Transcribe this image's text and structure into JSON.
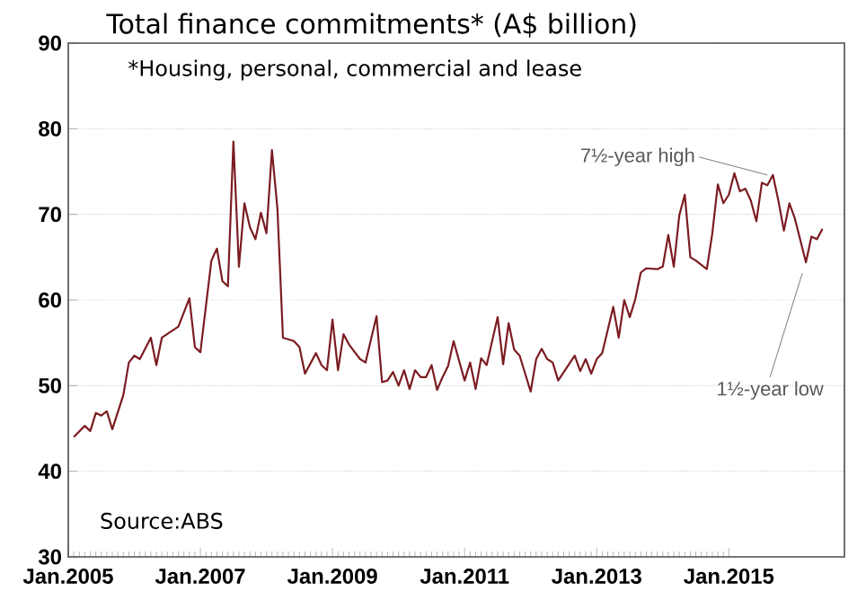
{
  "chart_data": {
    "type": "line",
    "title": "Total finance commitments* (A$ billion)",
    "subtitle": "*Housing, personal, commercial and lease",
    "x": [
      "2005-02",
      "2005-04",
      "2005-05",
      "2005-06",
      "2005-07",
      "2005-08",
      "2005-09",
      "2005-11",
      "2005-12",
      "2006-01",
      "2006-02",
      "2006-04",
      "2006-05",
      "2006-06",
      "2006-09",
      "2006-11",
      "2006-12",
      "2007-01",
      "2007-03",
      "2007-04",
      "2007-05",
      "2007-06",
      "2007-07",
      "2007-08",
      "2007-09",
      "2007-10",
      "2007-11",
      "2007-12",
      "2008-01",
      "2008-02",
      "2008-03",
      "2008-04",
      "2008-06",
      "2008-07",
      "2008-08",
      "2008-10",
      "2008-11",
      "2008-12",
      "2009-01",
      "2009-02",
      "2009-03",
      "2009-04",
      "2009-06",
      "2009-07",
      "2009-09",
      "2009-10",
      "2009-11",
      "2009-12",
      "2010-01",
      "2010-02",
      "2010-03",
      "2010-04",
      "2010-05",
      "2010-06",
      "2010-07",
      "2010-08",
      "2010-09",
      "2010-10",
      "2010-11",
      "2011-01",
      "2011-02",
      "2011-03",
      "2011-04",
      "2011-05",
      "2011-07",
      "2011-08",
      "2011-09",
      "2011-10",
      "2011-11",
      "2012-01",
      "2012-02",
      "2012-03",
      "2012-04",
      "2012-05",
      "2012-06",
      "2012-09",
      "2012-10",
      "2012-11",
      "2012-12",
      "2013-01",
      "2013-02",
      "2013-04",
      "2013-05",
      "2013-06",
      "2013-07",
      "2013-08",
      "2013-09",
      "2013-10",
      "2013-12",
      "2014-01",
      "2014-02",
      "2014-03",
      "2014-04",
      "2014-05",
      "2014-06",
      "2014-07",
      "2014-09",
      "2014-10",
      "2014-11",
      "2014-12",
      "2015-01",
      "2015-02",
      "2015-03",
      "2015-04",
      "2015-05",
      "2015-06",
      "2015-07",
      "2015-08",
      "2015-09",
      "2015-10",
      "2015-11",
      "2015-12",
      "2016-01",
      "2016-03",
      "2016-04",
      "2016-05",
      "2016-06"
    ],
    "series": [
      {
        "color": "#7b1c22",
        "values": [
          44.0,
          45.3,
          44.7,
          46.8,
          46.5,
          47.0,
          44.9,
          48.9,
          52.7,
          53.5,
          53.1,
          55.6,
          52.4,
          55.6,
          56.9,
          60.2,
          54.5,
          53.9,
          64.6,
          66.0,
          62.2,
          61.6,
          78.5,
          63.9,
          71.3,
          68.5,
          67.1,
          70.2,
          67.8,
          77.5,
          70.6,
          55.6,
          55.2,
          54.5,
          51.4,
          53.8,
          52.4,
          51.8,
          57.7,
          51.8,
          56.0,
          54.8,
          53.1,
          52.7,
          58.1,
          50.4,
          50.6,
          51.6,
          50.0,
          51.8,
          49.6,
          51.8,
          51.0,
          51.0,
          52.4,
          49.5,
          51.0,
          52.3,
          55.2,
          50.6,
          52.7,
          49.6,
          53.2,
          52.4,
          58.0,
          52.5,
          57.3,
          54.2,
          53.5,
          49.3,
          53.1,
          54.3,
          53.1,
          52.7,
          50.6,
          53.5,
          51.7,
          53.1,
          51.4,
          53.1,
          53.8,
          59.2,
          55.6,
          60.0,
          58.0,
          60.1,
          63.2,
          63.7,
          63.6,
          63.9,
          67.6,
          63.9,
          69.9,
          72.3,
          65.0,
          64.6,
          63.6,
          67.8,
          73.5,
          71.3,
          72.3,
          74.8,
          72.7,
          73.0,
          71.6,
          69.2,
          73.7,
          73.4,
          74.6,
          71.6,
          68.1,
          71.3,
          69.5,
          64.4,
          67.4,
          67.1,
          68.3
        ]
      }
    ],
    "xlim": [
      "2005-01",
      "2016-10"
    ],
    "xticks": [
      {
        "value": "2005-01",
        "label": "Jan.2005"
      },
      {
        "value": "2007-01",
        "label": "Jan.2007"
      },
      {
        "value": "2009-01",
        "label": "Jan.2009"
      },
      {
        "value": "2011-01",
        "label": "Jan.2011"
      },
      {
        "value": "2013-01",
        "label": "Jan.2013"
      },
      {
        "value": "2015-01",
        "label": "Jan.2015"
      }
    ],
    "ylim": [
      30,
      90
    ],
    "yticks": [
      30,
      40,
      50,
      60,
      70,
      80,
      90
    ],
    "grid": "y",
    "annotations": [
      {
        "text": "7½-year high",
        "x": "2015-08",
        "y": 74.6
      },
      {
        "text": "1½-year low",
        "x": "2016-03",
        "y": 64.4
      },
      "Source:ABS"
    ]
  }
}
